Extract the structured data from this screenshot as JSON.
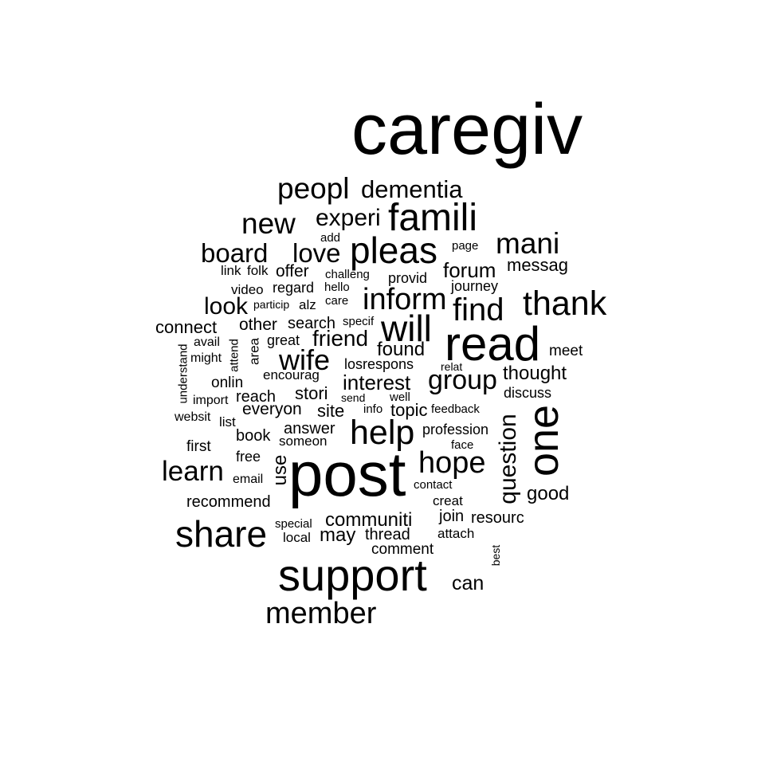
{
  "words": [
    {
      "text": "caregiv"
    },
    {
      "text": "post"
    },
    {
      "text": "read"
    },
    {
      "text": "support"
    },
    {
      "text": "one"
    },
    {
      "text": "famili"
    },
    {
      "text": "pleas"
    },
    {
      "text": "share"
    },
    {
      "text": "help"
    },
    {
      "text": "will"
    },
    {
      "text": "thank"
    },
    {
      "text": "inform"
    },
    {
      "text": "find"
    },
    {
      "text": "hope"
    },
    {
      "text": "member"
    },
    {
      "text": "peopl"
    },
    {
      "text": "new"
    },
    {
      "text": "mani"
    },
    {
      "text": "learn"
    },
    {
      "text": "wife"
    },
    {
      "text": "group"
    },
    {
      "text": "dementia"
    },
    {
      "text": "board"
    },
    {
      "text": "love"
    },
    {
      "text": "experi"
    },
    {
      "text": "question"
    },
    {
      "text": "look"
    },
    {
      "text": "friend"
    },
    {
      "text": "interest"
    },
    {
      "text": "communiti"
    },
    {
      "text": "forum"
    },
    {
      "text": "found"
    },
    {
      "text": "can"
    },
    {
      "text": "thought"
    },
    {
      "text": "good"
    },
    {
      "text": "may"
    },
    {
      "text": "connect"
    },
    {
      "text": "stori"
    },
    {
      "text": "site"
    },
    {
      "text": "use"
    },
    {
      "text": "messag"
    },
    {
      "text": "meet"
    },
    {
      "text": "topic"
    },
    {
      "text": "everyon"
    },
    {
      "text": "recommend"
    },
    {
      "text": "comment"
    },
    {
      "text": "other"
    },
    {
      "text": "search"
    },
    {
      "text": "offer"
    },
    {
      "text": "answer"
    },
    {
      "text": "thread"
    },
    {
      "text": "book"
    },
    {
      "text": "resourc"
    },
    {
      "text": "join"
    },
    {
      "text": "discuss"
    },
    {
      "text": "reach"
    },
    {
      "text": "profession"
    },
    {
      "text": "regard"
    },
    {
      "text": "journey"
    },
    {
      "text": "provid"
    },
    {
      "text": "onlin"
    },
    {
      "text": "free"
    },
    {
      "text": "first"
    },
    {
      "text": "great"
    },
    {
      "text": "encourag"
    },
    {
      "text": "losrespons"
    },
    {
      "text": "someon"
    },
    {
      "text": "local"
    },
    {
      "text": "video"
    },
    {
      "text": "folk"
    },
    {
      "text": "link"
    },
    {
      "text": "area"
    },
    {
      "text": "attend"
    },
    {
      "text": "understand"
    },
    {
      "text": "avail"
    },
    {
      "text": "might"
    },
    {
      "text": "import"
    },
    {
      "text": "websit"
    },
    {
      "text": "list"
    },
    {
      "text": "email"
    },
    {
      "text": "special"
    },
    {
      "text": "attach"
    },
    {
      "text": "creat"
    },
    {
      "text": "contact"
    },
    {
      "text": "face"
    },
    {
      "text": "feedback"
    },
    {
      "text": "info"
    },
    {
      "text": "send"
    },
    {
      "text": "well"
    },
    {
      "text": "relat"
    },
    {
      "text": "specif"
    },
    {
      "text": "care"
    },
    {
      "text": "hello"
    },
    {
      "text": "challeng"
    },
    {
      "text": "alz"
    },
    {
      "text": "particip"
    },
    {
      "text": "page"
    },
    {
      "text": "add"
    },
    {
      "text": "best"
    }
  ]
}
